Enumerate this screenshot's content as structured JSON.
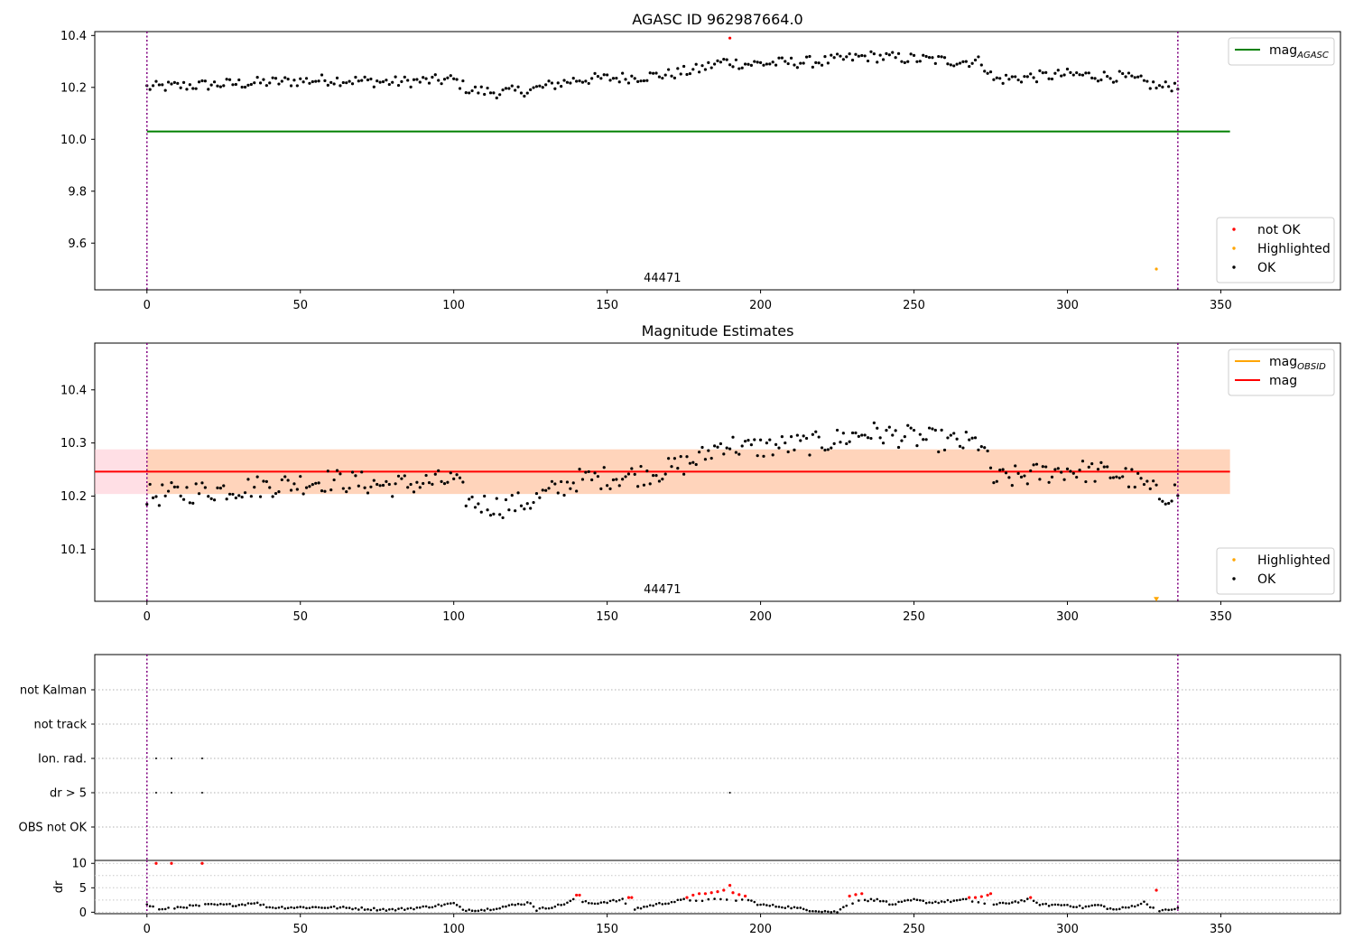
{
  "chart_data": [
    {
      "type": "scatter",
      "title": "AGASC ID 962987664.0",
      "xlim": [
        -17,
        389
      ],
      "ylim": [
        9.42,
        10.415
      ],
      "xticks": [
        0,
        50,
        100,
        150,
        200,
        250,
        300,
        350
      ],
      "yticks": [
        9.6,
        9.8,
        10.0,
        10.2,
        10.4
      ],
      "ytick_labels": [
        "9.6",
        "9.8",
        "10.0",
        "10.2",
        "10.4"
      ],
      "vlines": [
        0,
        336
      ],
      "obsid_label": {
        "text": "44471",
        "x": 168
      },
      "hlines": [
        {
          "name": "mag_AGASC",
          "y": 10.03,
          "x_start": 0,
          "x_end": 353,
          "color": "#008000"
        }
      ],
      "series": [
        {
          "name": "not OK",
          "color": "#ff0000",
          "points": [
            [
              190,
              10.39
            ]
          ]
        },
        {
          "name": "Highlighted",
          "color": "#ffa500",
          "points": [
            [
              329,
              9.5
            ]
          ]
        },
        {
          "name": "OK",
          "color": "#000000",
          "trend": [
            [
              0,
              10.2
            ],
            [
              20,
              10.21
            ],
            [
              40,
              10.22
            ],
            [
              60,
              10.23
            ],
            [
              80,
              10.22
            ],
            [
              100,
              10.23
            ],
            [
              105,
              10.19
            ],
            [
              115,
              10.18
            ],
            [
              125,
              10.19
            ],
            [
              140,
              10.23
            ],
            [
              160,
              10.24
            ],
            [
              170,
              10.25
            ],
            [
              180,
              10.27
            ],
            [
              188,
              10.3
            ],
            [
              195,
              10.29
            ],
            [
              220,
              10.3
            ],
            [
              235,
              10.32
            ],
            [
              250,
              10.31
            ],
            [
              265,
              10.3
            ],
            [
              272,
              10.3
            ],
            [
              276,
              10.23
            ],
            [
              300,
              10.25
            ],
            [
              318,
              10.24
            ],
            [
              325,
              10.22
            ],
            [
              330,
              10.2
            ],
            [
              336,
              10.21
            ]
          ]
        }
      ],
      "legends": [
        {
          "position": "top-right",
          "entries": [
            {
              "label": "mag",
              "sub": "AGASC",
              "kind": "line",
              "color": "#008000"
            }
          ]
        },
        {
          "position": "bottom-right",
          "entries": [
            {
              "label": "not OK",
              "kind": "dot",
              "color": "#ff0000"
            },
            {
              "label": "Highlighted",
              "kind": "dot",
              "color": "#ffa500"
            },
            {
              "label": "OK",
              "kind": "dot",
              "color": "#000000"
            }
          ]
        }
      ]
    },
    {
      "type": "scatter",
      "title": "Magnitude Estimates",
      "xlim": [
        -17,
        389
      ],
      "ylim": [
        10.002,
        10.488
      ],
      "xticks": [
        0,
        50,
        100,
        150,
        200,
        250,
        300,
        350
      ],
      "yticks": [
        10.1,
        10.2,
        10.3,
        10.4
      ],
      "ytick_labels": [
        "10.1",
        "10.2",
        "10.3",
        "10.4"
      ],
      "vlines": [
        0,
        336
      ],
      "obsid_label": {
        "text": "44471",
        "x": 168
      },
      "band": {
        "y0": 10.204,
        "y1": 10.288,
        "x_start": -17,
        "x_end": 353
      },
      "hlines": [
        {
          "name": "mag",
          "y": 10.246,
          "x_start": -17,
          "x_end": 353,
          "color": "#ff0000"
        }
      ],
      "series": [
        {
          "name": "Highlighted",
          "color": "#ffa500",
          "points": [
            [
              329,
              10.005
            ]
          ]
        },
        {
          "name": "OK",
          "color": "#000000",
          "trend": [
            [
              0,
              10.2
            ],
            [
              20,
              10.21
            ],
            [
              40,
              10.22
            ],
            [
              60,
              10.23
            ],
            [
              80,
              10.22
            ],
            [
              100,
              10.23
            ],
            [
              105,
              10.19
            ],
            [
              115,
              10.18
            ],
            [
              125,
              10.19
            ],
            [
              140,
              10.23
            ],
            [
              160,
              10.24
            ],
            [
              170,
              10.25
            ],
            [
              180,
              10.27
            ],
            [
              188,
              10.3
            ],
            [
              195,
              10.29
            ],
            [
              220,
              10.3
            ],
            [
              235,
              10.32
            ],
            [
              250,
              10.31
            ],
            [
              265,
              10.3
            ],
            [
              272,
              10.3
            ],
            [
              276,
              10.23
            ],
            [
              300,
              10.25
            ],
            [
              318,
              10.24
            ],
            [
              325,
              10.22
            ],
            [
              330,
              10.2
            ],
            [
              336,
              10.21
            ]
          ]
        }
      ],
      "legends": [
        {
          "position": "top-right",
          "entries": [
            {
              "label": "mag",
              "sub": "OBSID",
              "kind": "line",
              "color": "#ffa500"
            },
            {
              "label": "mag",
              "kind": "line",
              "color": "#ff0000"
            }
          ]
        },
        {
          "position": "bottom-right",
          "entries": [
            {
              "label": "Highlighted",
              "kind": "dot",
              "color": "#ffa500"
            },
            {
              "label": "OK",
              "kind": "dot",
              "color": "#000000"
            }
          ]
        }
      ]
    },
    {
      "type": "scatter",
      "title": "",
      "xlim": [
        -17,
        389
      ],
      "categories": [
        "OBS not OK",
        "dr > 5",
        "Ion. rad.",
        "not track",
        "not Kalman"
      ],
      "vlines": [
        0,
        336
      ],
      "flags": [
        {
          "category": "Ion. rad.",
          "x": [
            3,
            8,
            18
          ]
        },
        {
          "category": "dr > 5",
          "x": [
            3,
            8,
            18,
            190
          ]
        }
      ]
    },
    {
      "type": "scatter",
      "title": "",
      "xlim": [
        -17,
        389
      ],
      "ylim": [
        -0.3,
        10.6
      ],
      "ylabel": "dr",
      "xticks": [
        0,
        50,
        100,
        150,
        200,
        250,
        300,
        350
      ],
      "yticks": [
        0,
        5,
        10
      ],
      "ytick_labels": [
        "0",
        "5",
        "10"
      ],
      "vlines": [
        0,
        336
      ],
      "series": [
        {
          "name": "red",
          "color": "#ff0000",
          "points": [
            [
              3,
              10
            ],
            [
              8,
              10
            ],
            [
              18,
              10
            ],
            [
              140,
              3.5
            ],
            [
              141,
              3.5
            ],
            [
              157,
              3
            ],
            [
              158,
              3
            ],
            [
              176,
              3
            ],
            [
              178,
              3.5
            ],
            [
              180,
              3.8
            ],
            [
              182,
              3.8
            ],
            [
              184,
              4
            ],
            [
              186,
              4.2
            ],
            [
              188,
              4.5
            ],
            [
              190,
              5.5
            ],
            [
              191,
              4
            ],
            [
              193,
              3.6
            ],
            [
              195,
              3.3
            ],
            [
              229,
              3.3
            ],
            [
              231,
              3.6
            ],
            [
              233,
              3.8
            ],
            [
              268,
              3
            ],
            [
              270,
              3
            ],
            [
              272,
              3.2
            ],
            [
              274,
              3.5
            ],
            [
              275,
              3.8
            ],
            [
              288,
              3
            ],
            [
              329,
              4.5
            ]
          ]
        },
        {
          "name": "black",
          "color": "#000000",
          "trend": [
            [
              0,
              1.5
            ],
            [
              5,
              0.5
            ],
            [
              10,
              1
            ],
            [
              20,
              1.5
            ],
            [
              30,
              1.5
            ],
            [
              35,
              2
            ],
            [
              40,
              1
            ],
            [
              60,
              1
            ],
            [
              80,
              0.5
            ],
            [
              90,
              1
            ],
            [
              100,
              1.8
            ],
            [
              103,
              0.5
            ],
            [
              110,
              0.5
            ],
            [
              115,
              1
            ],
            [
              125,
              2
            ],
            [
              127,
              0.5
            ],
            [
              135,
              1.5
            ],
            [
              139,
              2.5
            ],
            [
              145,
              1.8
            ],
            [
              155,
              2.5
            ],
            [
              158,
              0.5
            ],
            [
              165,
              1.5
            ],
            [
              175,
              2.5
            ],
            [
              196,
              2.5
            ],
            [
              200,
              1.5
            ],
            [
              210,
              1
            ],
            [
              215,
              0.5
            ],
            [
              225,
              0
            ],
            [
              228,
              1.5
            ],
            [
              232,
              2.5
            ],
            [
              240,
              2.5
            ],
            [
              242,
              1.5
            ],
            [
              250,
              2.5
            ],
            [
              255,
              2
            ],
            [
              267,
              2.5
            ],
            [
              276,
              1.5
            ],
            [
              287,
              2.5
            ],
            [
              292,
              1.5
            ],
            [
              300,
              1.5
            ],
            [
              305,
              1
            ],
            [
              310,
              1.5
            ],
            [
              315,
              0.5
            ],
            [
              320,
              1
            ],
            [
              325,
              2
            ],
            [
              329,
              0.5
            ],
            [
              333,
              0.3
            ],
            [
              336,
              1
            ]
          ]
        }
      ]
    }
  ]
}
